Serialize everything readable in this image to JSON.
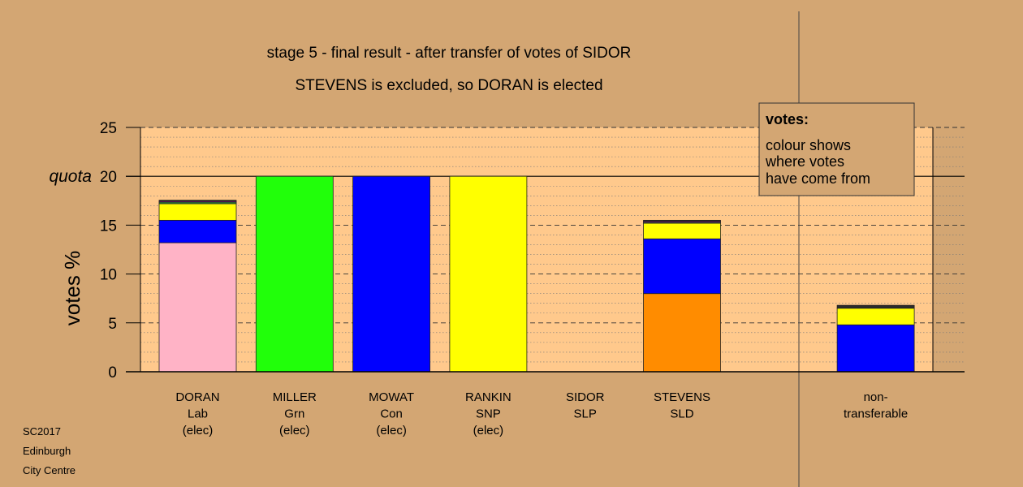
{
  "chart_data": {
    "type": "bar",
    "stacked": true,
    "title": "stage 5 - final result - after transfer of votes of SIDOR",
    "subtitle": "STEVENS is excluded, so DORAN is elected",
    "ylabel": "votes %",
    "ylim": [
      0,
      25
    ],
    "yticks": [
      0,
      5,
      10,
      15,
      20,
      25
    ],
    "quota": {
      "label": "quota",
      "value": 20
    },
    "categories": [
      {
        "lines": [
          "DORAN",
          "Lab",
          "(elec)"
        ]
      },
      {
        "lines": [
          "MILLER",
          "Grn",
          "(elec)"
        ]
      },
      {
        "lines": [
          "MOWAT",
          "Con",
          "(elec)"
        ]
      },
      {
        "lines": [
          "RANKIN",
          "SNP",
          "(elec)"
        ]
      },
      {
        "lines": [
          "SIDOR",
          "SLP"
        ]
      },
      {
        "lines": [
          "STEVENS",
          "SLD"
        ]
      },
      {
        "lines": []
      },
      {
        "lines": [
          "non-",
          "transferable"
        ]
      }
    ],
    "series": [
      {
        "color": "#ffb3c6",
        "values": [
          13.2,
          0,
          0,
          0,
          0,
          0,
          0,
          0
        ]
      },
      {
        "color": "#21ff0a",
        "values": [
          0,
          20,
          0,
          0,
          0,
          0,
          0,
          0
        ]
      },
      {
        "color": "#ff8c00",
        "values": [
          0,
          0,
          0,
          0,
          0,
          8.0,
          0,
          0
        ]
      },
      {
        "color": "#0000ff",
        "values": [
          2.3,
          0,
          20,
          0,
          0,
          5.6,
          0,
          4.8
        ]
      },
      {
        "color": "#ffff00",
        "values": [
          1.7,
          0,
          0,
          20,
          0,
          1.6,
          0,
          1.7
        ]
      },
      {
        "color": "#2f9e44",
        "values": [
          0.15,
          0,
          0,
          0,
          0,
          0.1,
          0,
          0
        ]
      },
      {
        "color": "#d000d0",
        "values": [
          0.1,
          0,
          0,
          0,
          0,
          0.1,
          0,
          0
        ]
      },
      {
        "color": "#2b2b2b",
        "values": [
          0.1,
          0,
          0,
          0,
          0,
          0.1,
          0,
          0.3
        ]
      }
    ],
    "legend": {
      "title": "votes:",
      "lines": [
        "colour shows",
        "where votes",
        "have come from"
      ],
      "placement": "top-right"
    },
    "source": [
      "SC2017",
      "Edinburgh",
      "City Centre"
    ]
  },
  "colors": {
    "background": "#d3a673",
    "plot_background": "#ffc98c",
    "legend_background": "#d3a673"
  }
}
